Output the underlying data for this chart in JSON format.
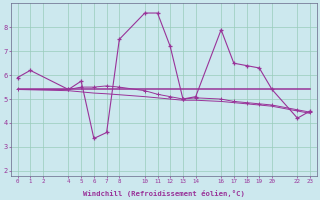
{
  "background_color": "#cce8ee",
  "grid_color": "#99ccbb",
  "line_color": "#993399",
  "xlabel": "Windchill (Refroidissement éolien,°C)",
  "xlabel_color": "#993399",
  "tick_color": "#993399",
  "xlim": [
    -0.5,
    23.5
  ],
  "ylim": [
    1.8,
    9.0
  ],
  "yticks": [
    2,
    3,
    4,
    5,
    6,
    7,
    8
  ],
  "xticks": [
    0,
    1,
    2,
    4,
    5,
    6,
    7,
    8,
    10,
    11,
    12,
    13,
    14,
    16,
    17,
    18,
    19,
    20,
    22,
    23
  ],
  "series1": [
    [
      0,
      5.9
    ],
    [
      1,
      6.2
    ],
    [
      4,
      5.4
    ],
    [
      5,
      5.75
    ],
    [
      6,
      3.35
    ],
    [
      7,
      3.6
    ],
    [
      8,
      7.5
    ],
    [
      10,
      8.6
    ],
    [
      11,
      8.6
    ],
    [
      12,
      7.2
    ],
    [
      13,
      5.0
    ],
    [
      14,
      5.1
    ],
    [
      16,
      7.9
    ],
    [
      17,
      6.5
    ],
    [
      18,
      6.4
    ],
    [
      19,
      6.3
    ],
    [
      20,
      5.4
    ],
    [
      22,
      4.2
    ],
    [
      23,
      4.5
    ]
  ],
  "series2": [
    [
      0,
      5.4
    ],
    [
      23,
      5.4
    ]
  ],
  "series3": [
    [
      0,
      5.4
    ],
    [
      4,
      5.4
    ],
    [
      5,
      5.5
    ],
    [
      6,
      5.5
    ],
    [
      7,
      5.55
    ],
    [
      8,
      5.5
    ],
    [
      10,
      5.35
    ],
    [
      11,
      5.2
    ],
    [
      12,
      5.1
    ],
    [
      13,
      5.0
    ],
    [
      14,
      5.05
    ],
    [
      16,
      5.0
    ],
    [
      17,
      4.9
    ],
    [
      18,
      4.85
    ],
    [
      19,
      4.8
    ],
    [
      20,
      4.75
    ],
    [
      22,
      4.55
    ],
    [
      23,
      4.45
    ]
  ],
  "series4": [
    [
      0,
      5.4
    ],
    [
      4,
      5.35
    ],
    [
      5,
      5.3
    ],
    [
      6,
      5.25
    ],
    [
      7,
      5.22
    ],
    [
      8,
      5.18
    ],
    [
      10,
      5.1
    ],
    [
      11,
      5.05
    ],
    [
      12,
      5.0
    ],
    [
      13,
      4.95
    ],
    [
      14,
      4.95
    ],
    [
      16,
      4.9
    ],
    [
      17,
      4.85
    ],
    [
      18,
      4.8
    ],
    [
      19,
      4.75
    ],
    [
      20,
      4.7
    ],
    [
      22,
      4.5
    ],
    [
      23,
      4.4
    ]
  ]
}
